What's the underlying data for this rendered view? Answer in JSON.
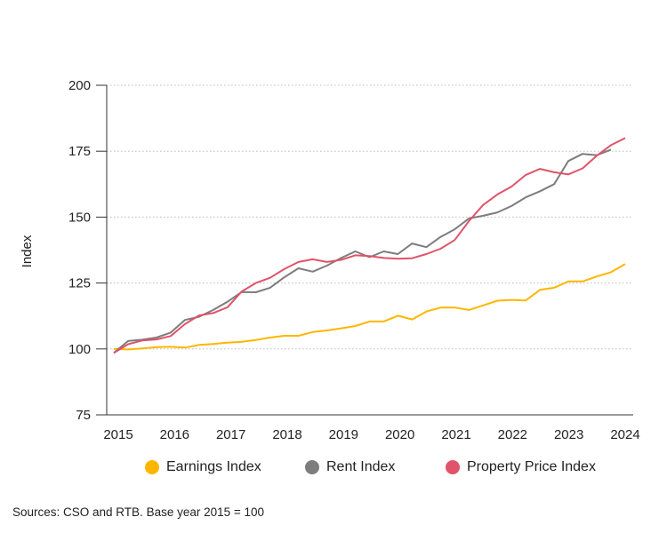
{
  "chart_data": {
    "type": "line",
    "title": "",
    "xlabel": "",
    "ylabel": "Index",
    "ylim": [
      75,
      200
    ],
    "yticks": [
      "75",
      "100",
      "125",
      "150",
      "175",
      "200"
    ],
    "xticks": [
      "2015",
      "2016",
      "2017",
      "2018",
      "2019",
      "2020",
      "2021",
      "2022",
      "2023",
      "2024"
    ],
    "xlim": [
      2015,
      2024
    ],
    "x_frequency": "quarterly",
    "grid": "horizontal dotted",
    "legend": "bottom",
    "series": [
      {
        "name": "Earnings Index",
        "color": "#FFB600",
        "values": [
          100,
          99.8,
          100.2,
          100.7,
          100.8,
          100.5,
          101.5,
          101.9,
          102.4,
          102.7,
          103.4,
          104.3,
          105,
          105,
          106.4,
          107,
          107.8,
          108.7,
          110.4,
          110.4,
          112.6,
          111.2,
          114.2,
          115.7,
          115.7,
          114.8,
          116.5,
          118.3,
          118.6,
          118.4,
          122.4,
          123.2,
          125.6,
          125.6,
          127.5,
          129.1,
          132.2
        ]
      },
      {
        "name": "Rent Index",
        "color": "#7D7D7D",
        "values": [
          98.5,
          103,
          103.5,
          104.3,
          106.2,
          111,
          112.2,
          114.8,
          117.9,
          121.6,
          121.5,
          123.2,
          127.2,
          130.6,
          129.3,
          131.6,
          134.5,
          137,
          134.8,
          137,
          136,
          140,
          138.6,
          142.5,
          145.4,
          149.5,
          150.5,
          151.8,
          154.2,
          157.5,
          159.8,
          162.5,
          171.3,
          174,
          173.5,
          175.6
        ]
      },
      {
        "name": "Property Price Index",
        "color": "#E0536A",
        "values": [
          98.5,
          101.8,
          103.2,
          103.6,
          104.9,
          109.4,
          112.7,
          113.6,
          115.8,
          121.8,
          125,
          127,
          130.3,
          133,
          134,
          133,
          133.8,
          135.5,
          135.2,
          134.5,
          134.2,
          134.4,
          136,
          138,
          141.3,
          148.5,
          154.6,
          158.6,
          161.6,
          166,
          168.3,
          167,
          166.2,
          168.5,
          173.3,
          177.3,
          180
        ]
      }
    ]
  },
  "footer": {
    "source": "Sources: CSO and RTB. Base year 2015 = 100"
  }
}
